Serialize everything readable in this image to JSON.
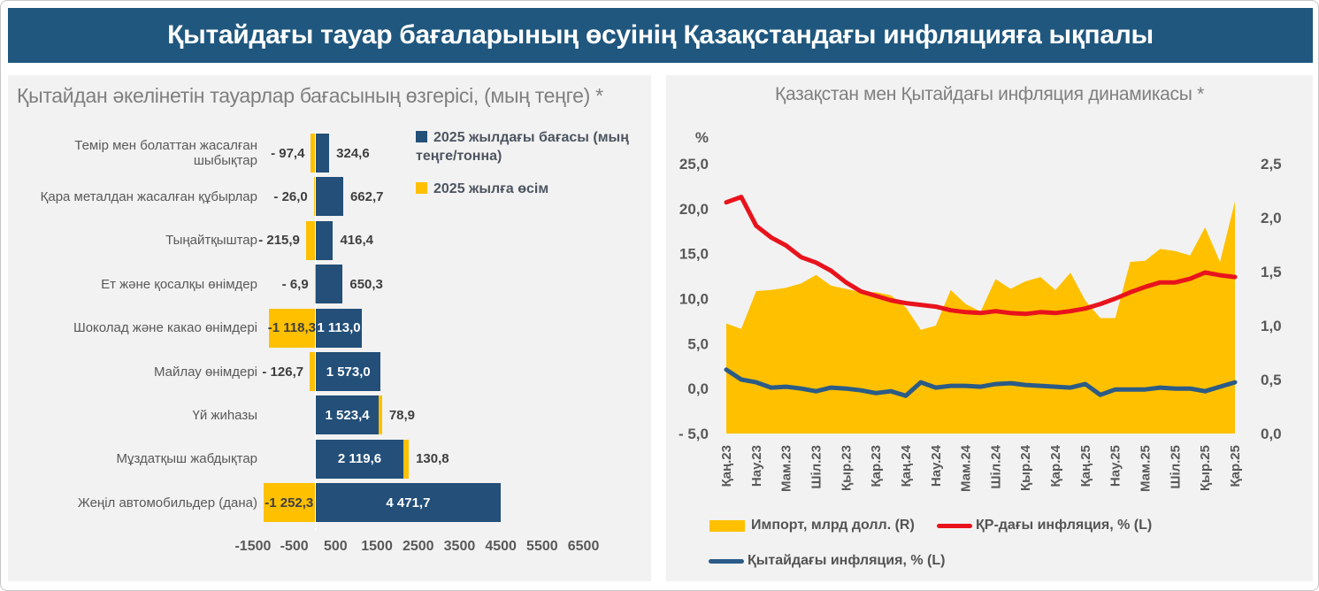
{
  "header": {
    "title": "Қытайдағы тауар бағаларының өсуінің Қазақстандағы инфляцияға ықпалы",
    "bg_color": "#20577E"
  },
  "colors": {
    "bar_blue": "#234F79",
    "growth_yellow": "#FFC000",
    "kz_red": "#E8131C",
    "cn_blue": "#2B5B86",
    "panel_bg": "#F2F2F2"
  },
  "chart_data": [
    {
      "type": "bar",
      "orientation": "horizontal",
      "title": "Қытайдан әкелінетін тауарлар бағасының өзгерісі, (мың теңге) *",
      "categories": [
        "Темір мен болаттан жасалған шыбықтар",
        "Қара металдан жасалған құбырлар",
        "Тыңайтқыштар",
        "Ет және қосалқы өнімдер",
        "Шоколад және какао өнімдері",
        "Майлау өнімдері",
        "Үй жиһазы",
        "Мұздатқыш жабдықтар",
        "Жеңіл автомобильдер (дана)"
      ],
      "series": [
        {
          "name": "2025 жылдағы бағасы (мың теңге/тонна)",
          "color": "#234F79",
          "values": [
            324.6,
            662.7,
            416.4,
            650.3,
            1113.0,
            1573.0,
            1523.4,
            2119.6,
            4471.7
          ],
          "labels": [
            "324,6",
            "662,7",
            "416,4",
            "650,3",
            "1 113,0",
            "1 573,0",
            "1 523,4",
            "2 119,6",
            "4 471,7"
          ]
        },
        {
          "name": "2025 жылға өсім",
          "color": "#FFC000",
          "values": [
            -97.4,
            -26.0,
            -215.9,
            -6.9,
            -1118.3,
            -126.7,
            78.9,
            130.8,
            -1252.3
          ],
          "labels": [
            "- 97,4",
            "- 26,0",
            "- 215,9",
            "- 6,9",
            "-1 118,3",
            "- 126,7",
            "78,9",
            "130,8",
            "-1 252,3"
          ]
        }
      ],
      "xlim": [
        -2000,
        7000
      ],
      "x_ticks": [
        "-1500",
        "-500",
        "500",
        "1500",
        "2500",
        "3500",
        "4500",
        "5500",
        "6500"
      ],
      "x_tick_values": [
        -1500,
        -500,
        500,
        1500,
        2500,
        3500,
        4500,
        5500,
        6500
      ],
      "grid": false
    },
    {
      "type": "combo",
      "title": "Қазақстан мен Қытайдағы инфляция динамикасы *",
      "left_axis": {
        "label": "%",
        "min": -5,
        "max": 25,
        "ticks": [
          "25,0",
          "20,0",
          "15,0",
          "10,0",
          "5,0",
          "0,0",
          "- 5,0"
        ],
        "tick_values": [
          25,
          20,
          15,
          10,
          5,
          0,
          -5
        ]
      },
      "right_axis": {
        "min": 0,
        "max": 2.5,
        "ticks": [
          "2,5",
          "2,0",
          "1,5",
          "1,0",
          "0,5",
          "0,0"
        ],
        "tick_values": [
          2.5,
          2.0,
          1.5,
          1.0,
          0.5,
          0
        ]
      },
      "x_labels": [
        "Қаң.23",
        "Нау.23",
        "Мам.23",
        "Шіл.23",
        "Қыр.23",
        "Қар.23",
        "Қаң.24",
        "Нау.24",
        "Мам.24",
        "Шіл.24",
        "Қыр.24",
        "Қар.24",
        "Қаң.25",
        "Нау.25",
        "Мам.25",
        "Шіл.25",
        "Қыр.25",
        "Қар.25"
      ],
      "x_label_every_nth_point": 2,
      "series": [
        {
          "name": "Импорт, млрд долл. (R)",
          "type": "area",
          "axis": "right",
          "color": "#FFC000",
          "values": [
            1.02,
            0.97,
            1.32,
            1.33,
            1.35,
            1.39,
            1.47,
            1.37,
            1.34,
            1.31,
            1.31,
            1.28,
            1.17,
            0.96,
            1.0,
            1.33,
            1.2,
            1.13,
            1.43,
            1.34,
            1.41,
            1.45,
            1.33,
            1.49,
            1.23,
            1.07,
            1.07,
            1.59,
            1.6,
            1.71,
            1.69,
            1.65,
            1.91,
            1.59,
            2.15
          ]
        },
        {
          "name": "ҚР-дағы инфляция, % (L)",
          "type": "line",
          "axis": "left",
          "color": "#E8131C",
          "values": [
            20.7,
            21.3,
            18.1,
            16.8,
            15.9,
            14.6,
            14.0,
            13.1,
            11.8,
            10.8,
            10.3,
            9.8,
            9.5,
            9.3,
            9.1,
            8.7,
            8.5,
            8.4,
            8.6,
            8.4,
            8.3,
            8.5,
            8.4,
            8.6,
            8.9,
            9.4,
            10.0,
            10.7,
            11.3,
            11.8,
            11.8,
            12.2,
            12.9,
            12.6,
            12.4
          ]
        },
        {
          "name": "Қытайдағы инфляция, % (L)",
          "type": "line",
          "axis": "left",
          "color": "#2B5B86",
          "values": [
            2.1,
            1.0,
            0.7,
            0.1,
            0.2,
            0.0,
            -0.3,
            0.1,
            0.0,
            -0.2,
            -0.5,
            -0.3,
            -0.8,
            0.7,
            0.1,
            0.3,
            0.3,
            0.2,
            0.5,
            0.6,
            0.4,
            0.3,
            0.2,
            0.1,
            0.5,
            -0.7,
            -0.1,
            -0.1,
            -0.1,
            0.1,
            0.0,
            0.0,
            -0.3,
            0.2,
            0.7
          ]
        }
      ],
      "legend_position": "bottom",
      "grid": false
    }
  ]
}
